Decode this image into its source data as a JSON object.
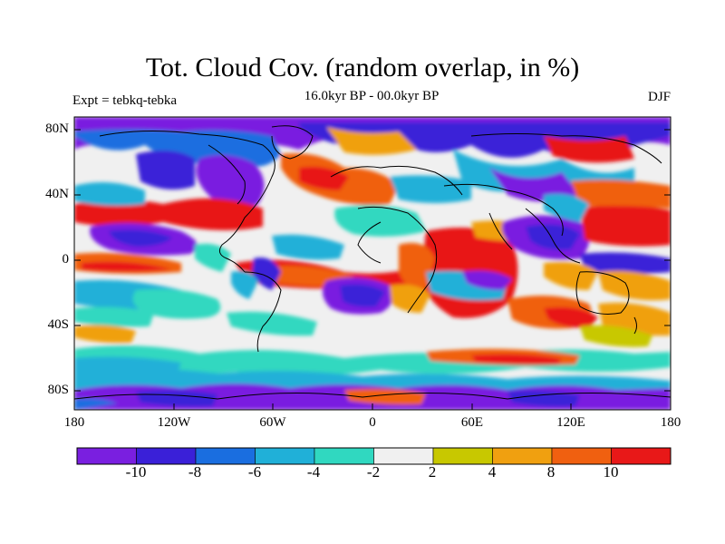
{
  "title": "Tot. Cloud Cov. (random overlap, in %)",
  "subtitle_center": "16.0kyr BP - 00.0kyr BP",
  "subtitle_left": "Expt = tebkq-tebka",
  "subtitle_right": "DJF",
  "map": {
    "lon_range": [
      -180,
      180
    ],
    "lat_range": [
      -90,
      90
    ],
    "lat_ticks": [
      {
        "value": 80,
        "label": "80N"
      },
      {
        "value": 40,
        "label": "40N"
      },
      {
        "value": 0,
        "label": "0"
      },
      {
        "value": -40,
        "label": "40S"
      },
      {
        "value": -80,
        "label": "80S"
      }
    ],
    "lon_ticks": [
      {
        "value": -180,
        "label": "180"
      },
      {
        "value": -120,
        "label": "120W"
      },
      {
        "value": -60,
        "label": "60W"
      },
      {
        "value": 0,
        "label": "0"
      },
      {
        "value": 60,
        "label": "60E"
      },
      {
        "value": 120,
        "label": "120E"
      },
      {
        "value": 180,
        "label": "180"
      }
    ]
  },
  "colorbar": {
    "colors": [
      "#7a1fe0",
      "#3a20d8",
      "#1a6ee0",
      "#20b0d8",
      "#30d8c0",
      "#f0f0f0",
      "#c8c800",
      "#f0a010",
      "#f06010",
      "#e81818"
    ],
    "labels": [
      {
        "boundary": 1,
        "text": "-10"
      },
      {
        "boundary": 2,
        "text": "-8"
      },
      {
        "boundary": 3,
        "text": "-6"
      },
      {
        "boundary": 4,
        "text": "-4"
      },
      {
        "boundary": 5,
        "text": "-2"
      },
      {
        "boundary": 6,
        "text": "2"
      },
      {
        "boundary": 7,
        "text": "4"
      },
      {
        "boundary": 8,
        "text": "8"
      },
      {
        "boundary": 9,
        "text": "10"
      }
    ]
  }
}
